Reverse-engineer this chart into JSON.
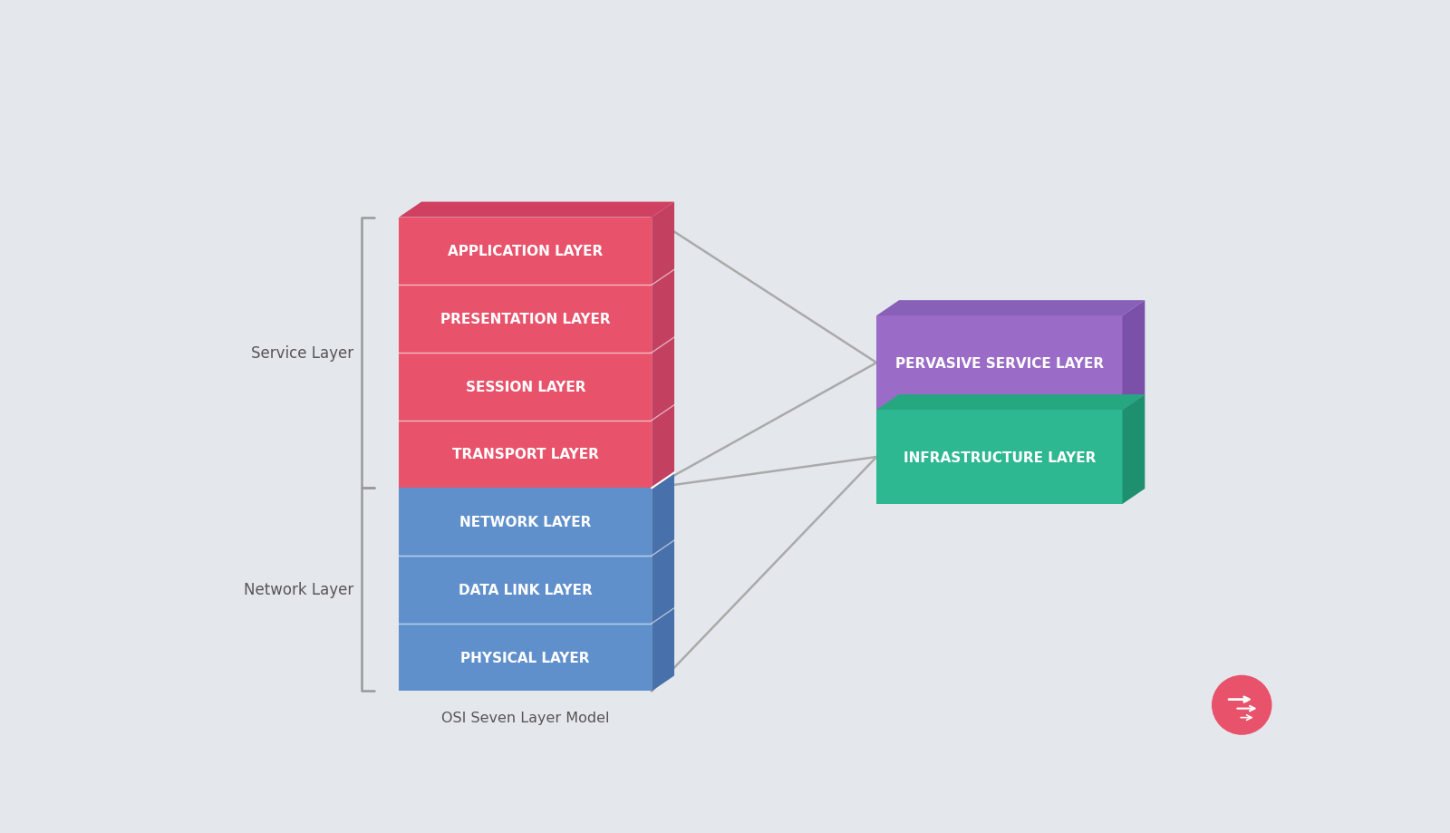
{
  "bg_color": "#e4e8ed",
  "osi_layers_top": [
    "APPLICATION LAYER",
    "PRESENTATION LAYER",
    "SESSION LAYER",
    "TRANSPORT LAYER"
  ],
  "osi_layers_bottom": [
    "NETWORK LAYER",
    "DATA LINK LAYER",
    "PHYSICAL LAYER"
  ],
  "top_color_front": "#e8526a",
  "top_color_side": "#c44060",
  "top_color_top": "#d04060",
  "bottom_color_front": "#6090cc",
  "bottom_color_side": "#4870aa",
  "bottom_color_top": "#5080bb",
  "perv_color_front": "#9b6cc7",
  "perv_color_side": "#7a50a8",
  "perv_color_top": "#8860b8",
  "infra_color_front": "#2db892",
  "infra_color_side": "#1e9070",
  "infra_color_top": "#25a880",
  "service_label": "Service Layer",
  "network_label": "Network Layer",
  "bottom_label": "OSI Seven Layer Model",
  "line_color": "#aaaaaa",
  "text_color": "#ffffff",
  "bracket_color": "#999999",
  "label_color": "#555555",
  "logo_color": "#e8526a"
}
